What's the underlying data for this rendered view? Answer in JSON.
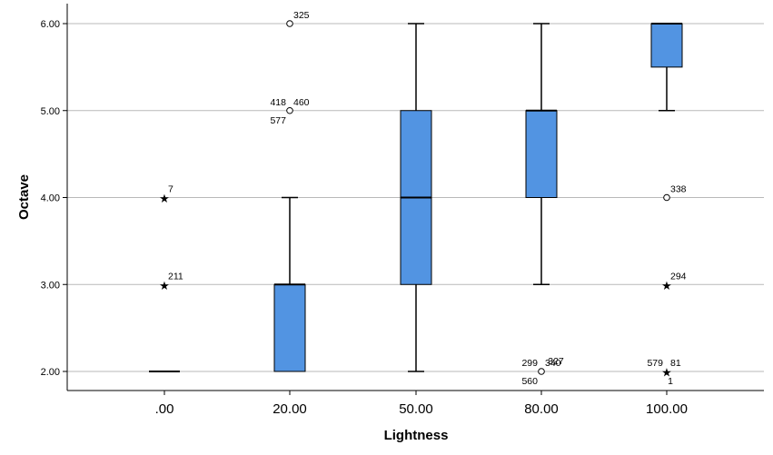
{
  "chart_data": {
    "type": "boxplot",
    "xlabel": "Lightness",
    "ylabel": "Octave",
    "ylim": [
      1.8,
      6.2
    ],
    "y_ticks": [
      2.0,
      3.0,
      4.0,
      5.0,
      6.0
    ],
    "y_tick_labels": [
      "2.00",
      "3.00",
      "4.00",
      "5.00",
      "6.00"
    ],
    "grid": "horizontal",
    "box_color": "#5294e2",
    "categories": [
      ".00",
      "20.00",
      "50.00",
      "80.00",
      "100.00"
    ],
    "boxes": [
      {
        "category": ".00",
        "whisker_low": 2.0,
        "q1": 2.0,
        "median": 2.0,
        "q3": 2.0,
        "whisker_high": 2.0,
        "outliers": [
          {
            "value": 4.0,
            "marker": "star",
            "labels": [
              {
                "text": "7",
                "pos": "ne"
              }
            ]
          },
          {
            "value": 3.0,
            "marker": "star",
            "labels": [
              {
                "text": "211",
                "pos": "ne"
              }
            ]
          }
        ]
      },
      {
        "category": "20.00",
        "whisker_low": 2.0,
        "q1": 2.0,
        "median": 3.0,
        "q3": 3.0,
        "whisker_high": 4.0,
        "outliers": [
          {
            "value": 6.0,
            "marker": "circle",
            "labels": [
              {
                "text": "325",
                "pos": "ne"
              }
            ]
          },
          {
            "value": 5.0,
            "marker": "circle",
            "labels": [
              {
                "text": "418",
                "pos": "nw"
              },
              {
                "text": "460",
                "pos": "ne"
              },
              {
                "text": "577",
                "pos": "sw"
              }
            ]
          }
        ]
      },
      {
        "category": "50.00",
        "whisker_low": 2.0,
        "q1": 3.0,
        "median": 4.0,
        "q3": 5.0,
        "whisker_high": 6.0,
        "outliers": []
      },
      {
        "category": "80.00",
        "whisker_low": 3.0,
        "q1": 4.0,
        "median": 5.0,
        "q3": 5.0,
        "whisker_high": 6.0,
        "outliers": [
          {
            "value": 2.0,
            "marker": "circle",
            "labels": [
              {
                "text": "299",
                "pos": "nw"
              },
              {
                "text": "327",
                "pos": "n"
              },
              {
                "text": "340",
                "pos": "ne"
              },
              {
                "text": "560",
                "pos": "sw"
              }
            ]
          }
        ]
      },
      {
        "category": "100.00",
        "whisker_low": 5.0,
        "q1": 5.5,
        "median": 6.0,
        "q3": 6.0,
        "whisker_high": 6.0,
        "outliers": [
          {
            "value": 4.0,
            "marker": "circle",
            "labels": [
              {
                "text": "338",
                "pos": "ne"
              }
            ]
          },
          {
            "value": 3.0,
            "marker": "star",
            "labels": [
              {
                "text": "294",
                "pos": "ne"
              }
            ]
          },
          {
            "value": 2.0,
            "marker": "star",
            "labels": [
              {
                "text": "579",
                "pos": "nw"
              },
              {
                "text": "81",
                "pos": "ne"
              },
              {
                "text": "1",
                "pos": "s"
              }
            ]
          }
        ]
      }
    ]
  }
}
